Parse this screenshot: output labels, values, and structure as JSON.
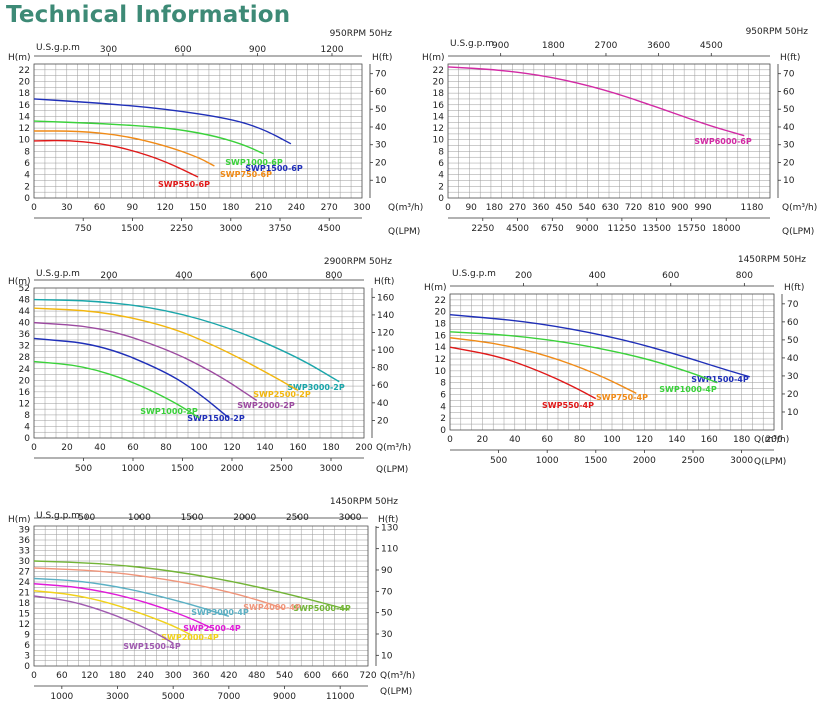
{
  "page_title": "Technical Information",
  "chart_data": [
    {
      "type": "line",
      "rpm": "950RPM 50Hz",
      "gpm_label": "U.S.g.p.m",
      "h_m_label": "H(m)",
      "h_ft_label": "H(ft)",
      "q_label": "Q(m³/h)",
      "qlpm_label": "Q(LPM)",
      "x_range": [
        0,
        300
      ],
      "x_ticks": [
        0,
        30,
        60,
        90,
        120,
        150,
        180,
        210,
        240,
        270,
        300
      ],
      "y_range": [
        0,
        23
      ],
      "y_ticks": [
        0,
        2,
        4,
        6,
        8,
        10,
        12,
        14,
        16,
        18,
        20,
        22
      ],
      "gpm_ticks": [
        300,
        600,
        900,
        1200
      ],
      "ft_ticks": [
        10,
        20,
        30,
        40,
        50,
        60,
        70
      ],
      "lpm_ticks": [
        750,
        1500,
        2250,
        3000,
        3750,
        4500
      ],
      "series": [
        {
          "name": "SWP1500-6P",
          "color": "#1f2fb8",
          "x": [
            0,
            60,
            120,
            180,
            210,
            235
          ],
          "y": [
            17,
            16.3,
            15.3,
            13.6,
            11.8,
            9.3
          ]
        },
        {
          "name": "SWP1000-6P",
          "color": "#3ad13a",
          "x": [
            0,
            60,
            120,
            160,
            190,
            210
          ],
          "y": [
            13.2,
            12.8,
            12.1,
            10.9,
            9.3,
            7.6
          ]
        },
        {
          "name": "SWP750-6P",
          "color": "#f08a16",
          "x": [
            0,
            40,
            80,
            120,
            150,
            165
          ],
          "y": [
            11.5,
            11.5,
            10.8,
            9,
            7,
            5.5
          ]
        },
        {
          "name": "SWP550-6P",
          "color": "#e01818",
          "x": [
            0,
            30,
            60,
            90,
            120,
            150
          ],
          "y": [
            9.8,
            9.9,
            9.4,
            8.2,
            6.3,
            3.6
          ]
        }
      ]
    },
    {
      "type": "line",
      "rpm": "950RPM 50Hz",
      "gpm_label": "U.S.g.p.m",
      "h_m_label": "H(m)",
      "h_ft_label": "H(ft)",
      "q_label": "Q(m³/h)",
      "qlpm_label": "Q(LPM)",
      "x_range": [
        0,
        1250
      ],
      "x_ticks": [
        0,
        90,
        180,
        270,
        360,
        450,
        540,
        630,
        720,
        810,
        900,
        990,
        1180
      ],
      "y_range": [
        0,
        23
      ],
      "y_ticks": [
        0,
        2,
        4,
        6,
        8,
        10,
        12,
        14,
        16,
        18,
        20,
        22
      ],
      "gpm_ticks": [
        900,
        1800,
        2700,
        3600,
        4500
      ],
      "ft_ticks": [
        10,
        20,
        30,
        40,
        50,
        60,
        70
      ],
      "lpm_ticks": [
        2250,
        4500,
        6750,
        9000,
        11250,
        13500,
        15750,
        18000
      ],
      "series": [
        {
          "name": "SWP6000-6P",
          "color": "#d22aa4",
          "x": [
            0,
            200,
            400,
            600,
            800,
            1000,
            1150
          ],
          "y": [
            22.5,
            22,
            20.8,
            18.7,
            15.8,
            12.6,
            10.7
          ]
        }
      ]
    },
    {
      "type": "line",
      "rpm": "2900RPM 50Hz",
      "gpm_label": "U.S.g.p.m",
      "h_m_label": "H(m)",
      "h_ft_label": "H(ft)",
      "q_label": "Q(m³/h)",
      "qlpm_label": "Q(LPM)",
      "x_range": [
        0,
        200
      ],
      "x_ticks": [
        0,
        20,
        40,
        60,
        80,
        100,
        120,
        140,
        160,
        180,
        200
      ],
      "y_range": [
        0,
        52
      ],
      "y_ticks": [
        0,
        4,
        8,
        12,
        16,
        20,
        24,
        28,
        32,
        36,
        40,
        44,
        48,
        52
      ],
      "gpm_ticks": [
        200,
        400,
        600,
        800
      ],
      "ft_ticks": [
        20,
        40,
        60,
        80,
        100,
        120,
        140,
        160
      ],
      "lpm_ticks": [
        500,
        1000,
        1500,
        2000,
        2500,
        3000
      ],
      "series": [
        {
          "name": "SWP3000-2P",
          "color": "#1aa6aa",
          "x": [
            0,
            40,
            80,
            120,
            160,
            185
          ],
          "y": [
            48,
            47.5,
            44.5,
            38,
            28,
            19.5
          ]
        },
        {
          "name": "SWP2500-2P",
          "color": "#f2b60e",
          "x": [
            0,
            40,
            80,
            110,
            140,
            160
          ],
          "y": [
            45,
            44,
            39,
            32,
            23,
            16.5
          ]
        },
        {
          "name": "SWP2000-2P",
          "color": "#9c4aa0",
          "x": [
            0,
            40,
            80,
            110,
            135
          ],
          "y": [
            40,
            38.5,
            31,
            22.5,
            13
          ]
        },
        {
          "name": "SWP1500-2P",
          "color": "#1f2fb8",
          "x": [
            0,
            40,
            80,
            100,
            118
          ],
          "y": [
            34.5,
            32.5,
            23,
            15.5,
            7
          ]
        },
        {
          "name": "SWP1000-2P",
          "color": "#3ad13a",
          "x": [
            0,
            30,
            60,
            85,
            100
          ],
          "y": [
            26.5,
            25,
            19.5,
            12.5,
            7
          ]
        }
      ]
    },
    {
      "type": "line",
      "rpm": "1450RPM 50Hz",
      "gpm_label": "U.S.g.p.m",
      "h_m_label": "H(m)",
      "h_ft_label": "H(ft)",
      "q_label": "Q(m³/h)",
      "qlpm_label": "Q(LPM)",
      "x_range": [
        0,
        200
      ],
      "x_ticks": [
        0,
        20,
        40,
        60,
        80,
        100,
        120,
        140,
        160,
        180,
        200
      ],
      "y_range": [
        0,
        23
      ],
      "y_ticks": [
        0,
        2,
        4,
        6,
        8,
        10,
        12,
        14,
        16,
        18,
        20,
        22
      ],
      "gpm_ticks": [
        200,
        400,
        600,
        800
      ],
      "ft_ticks": [
        10,
        20,
        30,
        40,
        50,
        60,
        70
      ],
      "lpm_ticks": [
        500,
        1000,
        1500,
        2000,
        2500,
        3000
      ],
      "series": [
        {
          "name": "SWP1500-4P",
          "color": "#1f2fb8",
          "x": [
            0,
            50,
            100,
            140,
            170,
            185
          ],
          "y": [
            19.5,
            18.3,
            15.8,
            12.8,
            10.2,
            9
          ]
        },
        {
          "name": "SWP1000-4P",
          "color": "#3ad13a",
          "x": [
            0,
            40,
            80,
            120,
            150,
            165
          ],
          "y": [
            16.6,
            16,
            14.5,
            12.2,
            9.6,
            8
          ]
        },
        {
          "name": "SWP750-4P",
          "color": "#f08a16",
          "x": [
            0,
            30,
            60,
            90,
            115
          ],
          "y": [
            15.6,
            14.6,
            12.6,
            9.6,
            6.2
          ]
        },
        {
          "name": "SWP550-4P",
          "color": "#e01818",
          "x": [
            0,
            30,
            55,
            75,
            90
          ],
          "y": [
            14,
            12.5,
            10,
            7.5,
            5.3
          ]
        }
      ]
    },
    {
      "type": "line",
      "rpm": "1450RPM 50Hz",
      "gpm_label": "U.S.g.p.m",
      "h_m_label": "H(m)",
      "h_ft_label": "H(ft)",
      "q_label": "Q(m³/h)",
      "qlpm_label": "Q(LPM)",
      "x_range": [
        0,
        720
      ],
      "x_ticks": [
        0,
        60,
        120,
        180,
        240,
        300,
        360,
        420,
        480,
        540,
        600,
        660,
        720
      ],
      "y_range": [
        0,
        40
      ],
      "y_ticks": [
        0,
        3,
        6,
        9,
        12,
        15,
        18,
        21,
        24,
        27,
        30,
        33,
        36,
        39
      ],
      "gpm_ticks": [
        500,
        1000,
        1500,
        2000,
        2500,
        3000
      ],
      "ft_ticks": [
        10,
        30,
        50,
        70,
        90,
        110,
        130
      ],
      "lpm_ticks": [
        1000,
        3000,
        5000,
        7000,
        9000,
        11000
      ],
      "series": [
        {
          "name": "SWP5000-4P",
          "color": "#72b436",
          "x": [
            0,
            150,
            300,
            450,
            580,
            680
          ],
          "y": [
            30,
            29.3,
            27.2,
            23.6,
            19.5,
            16
          ]
        },
        {
          "name": "SWP4000-4P",
          "color": "#f0957a",
          "x": [
            0,
            150,
            300,
            400,
            480,
            540
          ],
          "y": [
            28,
            27.2,
            24.5,
            21.8,
            19,
            16.3
          ]
        },
        {
          "name": "SWP3000-4P",
          "color": "#5bb0c4",
          "x": [
            0,
            100,
            200,
            300,
            370,
            420
          ],
          "y": [
            25,
            24.3,
            22.2,
            19,
            16.3,
            14.2
          ]
        },
        {
          "name": "SWP2500-4P",
          "color": "#e01ad8",
          "x": [
            0,
            100,
            200,
            280,
            340,
            380
          ],
          "y": [
            23.5,
            22.5,
            19.8,
            16.5,
            13.5,
            11
          ]
        },
        {
          "name": "SWP2000-4P",
          "color": "#f2d21a",
          "x": [
            0,
            80,
            160,
            240,
            300,
            340
          ],
          "y": [
            21.5,
            20.5,
            18.2,
            14.6,
            11.5,
            8.8
          ]
        },
        {
          "name": "SWP1500-4P",
          "color": "#a05ab0",
          "x": [
            0,
            80,
            160,
            230,
            275,
            300
          ],
          "y": [
            20,
            18.6,
            15.3,
            11.5,
            8.5,
            6.5
          ]
        }
      ]
    }
  ]
}
